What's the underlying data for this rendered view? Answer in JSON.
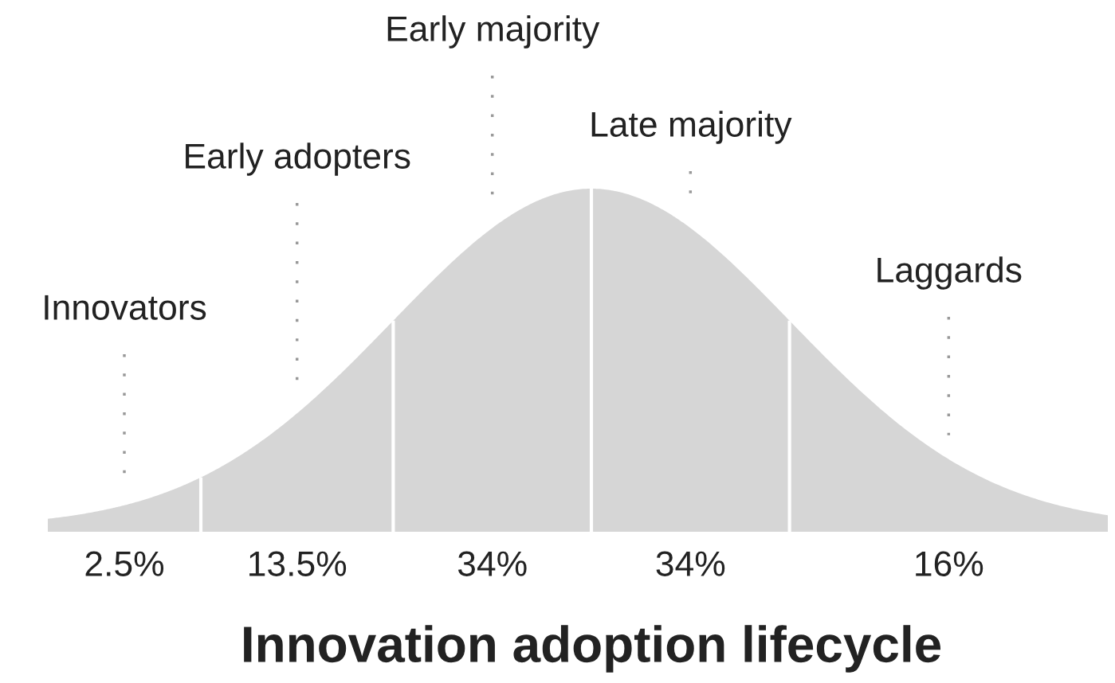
{
  "chart_data": {
    "type": "other",
    "title": "Innovation adoption lifecycle",
    "categories": [
      "Innovators",
      "Early adopters",
      "Early majority",
      "Late majority",
      "Laggards"
    ],
    "values": [
      2.5,
      13.5,
      34,
      34,
      16
    ],
    "value_labels": [
      "2.5%",
      "13.5%",
      "34%",
      "34%",
      "16%"
    ],
    "color": "#d6d6d6"
  }
}
